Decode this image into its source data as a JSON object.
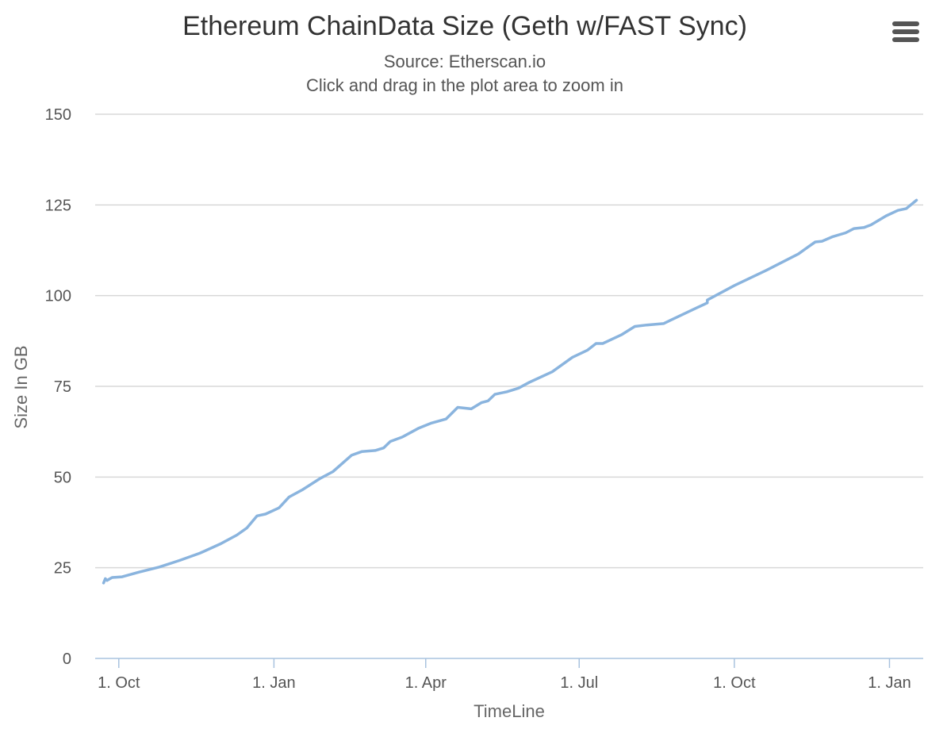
{
  "chart_data": {
    "type": "line",
    "title": "Ethereum ChainData Size (Geth w/FAST Sync)",
    "subtitle": "Source: Etherscan.io",
    "subtitle2": "Click and drag in the plot area to zoom in",
    "xlabel": "TimeLine",
    "ylabel": "Size In GB",
    "ylim": [
      0,
      150
    ],
    "yticks": [
      0,
      25,
      50,
      75,
      100,
      125,
      150
    ],
    "xlim": [
      "2017-09-17",
      "2019-01-21"
    ],
    "xticks": [
      {
        "date": "2017-10-01",
        "label": "1. Oct"
      },
      {
        "date": "2018-01-01",
        "label": "1. Jan"
      },
      {
        "date": "2018-04-01",
        "label": "1. Apr"
      },
      {
        "date": "2018-07-01",
        "label": "1. Jul"
      },
      {
        "date": "2018-10-01",
        "label": "1. Oct"
      },
      {
        "date": "2019-01-01",
        "label": "1. Jan"
      }
    ],
    "grid": true,
    "legend": "none",
    "series": [
      {
        "color": "#8ab4de",
        "points": [
          [
            "2017-09-22",
            20.8
          ],
          [
            "2017-09-23",
            22.0
          ],
          [
            "2017-09-24",
            21.5
          ],
          [
            "2017-09-27",
            22.3
          ],
          [
            "2017-10-03",
            22.5
          ],
          [
            "2017-10-13",
            23.8
          ],
          [
            "2017-10-25",
            25.2
          ],
          [
            "2017-11-06",
            27.0
          ],
          [
            "2017-11-18",
            29.0
          ],
          [
            "2017-11-30",
            31.5
          ],
          [
            "2017-12-10",
            34.0
          ],
          [
            "2017-12-16",
            36.0
          ],
          [
            "2017-12-22",
            39.3
          ],
          [
            "2017-12-27",
            39.8
          ],
          [
            "2018-01-04",
            41.5
          ],
          [
            "2018-01-10",
            44.5
          ],
          [
            "2018-01-18",
            46.5
          ],
          [
            "2018-01-28",
            49.5
          ],
          [
            "2018-02-05",
            51.5
          ],
          [
            "2018-02-16",
            56.0
          ],
          [
            "2018-02-22",
            57.0
          ],
          [
            "2018-03-02",
            57.3
          ],
          [
            "2018-03-07",
            58.0
          ],
          [
            "2018-03-11",
            59.8
          ],
          [
            "2018-03-18",
            61.0
          ],
          [
            "2018-03-28",
            63.5
          ],
          [
            "2018-04-04",
            64.8
          ],
          [
            "2018-04-13",
            66.0
          ],
          [
            "2018-04-20",
            69.2
          ],
          [
            "2018-04-28",
            68.8
          ],
          [
            "2018-05-04",
            70.5
          ],
          [
            "2018-05-08",
            71.0
          ],
          [
            "2018-05-12",
            72.8
          ],
          [
            "2018-05-19",
            73.5
          ],
          [
            "2018-05-26",
            74.5
          ],
          [
            "2018-06-01",
            76.0
          ],
          [
            "2018-06-15",
            79.0
          ],
          [
            "2018-06-27",
            83.0
          ],
          [
            "2018-07-06",
            85.0
          ],
          [
            "2018-07-11",
            86.8
          ],
          [
            "2018-07-15",
            86.8
          ],
          [
            "2018-07-26",
            89.2
          ],
          [
            "2018-08-03",
            91.5
          ],
          [
            "2018-08-10",
            91.9
          ],
          [
            "2018-08-20",
            92.3
          ],
          [
            "2018-08-24",
            93.2
          ],
          [
            "2018-09-08",
            96.5
          ],
          [
            "2018-09-15",
            98.0
          ],
          [
            "2018-09-15",
            98.8
          ],
          [
            "2018-10-01",
            102.8
          ],
          [
            "2018-10-20",
            107.0
          ],
          [
            "2018-11-08",
            111.5
          ],
          [
            "2018-11-14",
            113.5
          ],
          [
            "2018-11-18",
            114.8
          ],
          [
            "2018-11-22",
            115.0
          ],
          [
            "2018-11-28",
            116.2
          ],
          [
            "2018-12-06",
            117.3
          ],
          [
            "2018-12-11",
            118.5
          ],
          [
            "2018-12-17",
            118.8
          ],
          [
            "2018-12-21",
            119.5
          ],
          [
            "2018-12-30",
            122.0
          ],
          [
            "2019-01-06",
            123.5
          ],
          [
            "2019-01-11",
            124.0
          ],
          [
            "2019-01-17",
            126.3
          ]
        ]
      }
    ]
  }
}
